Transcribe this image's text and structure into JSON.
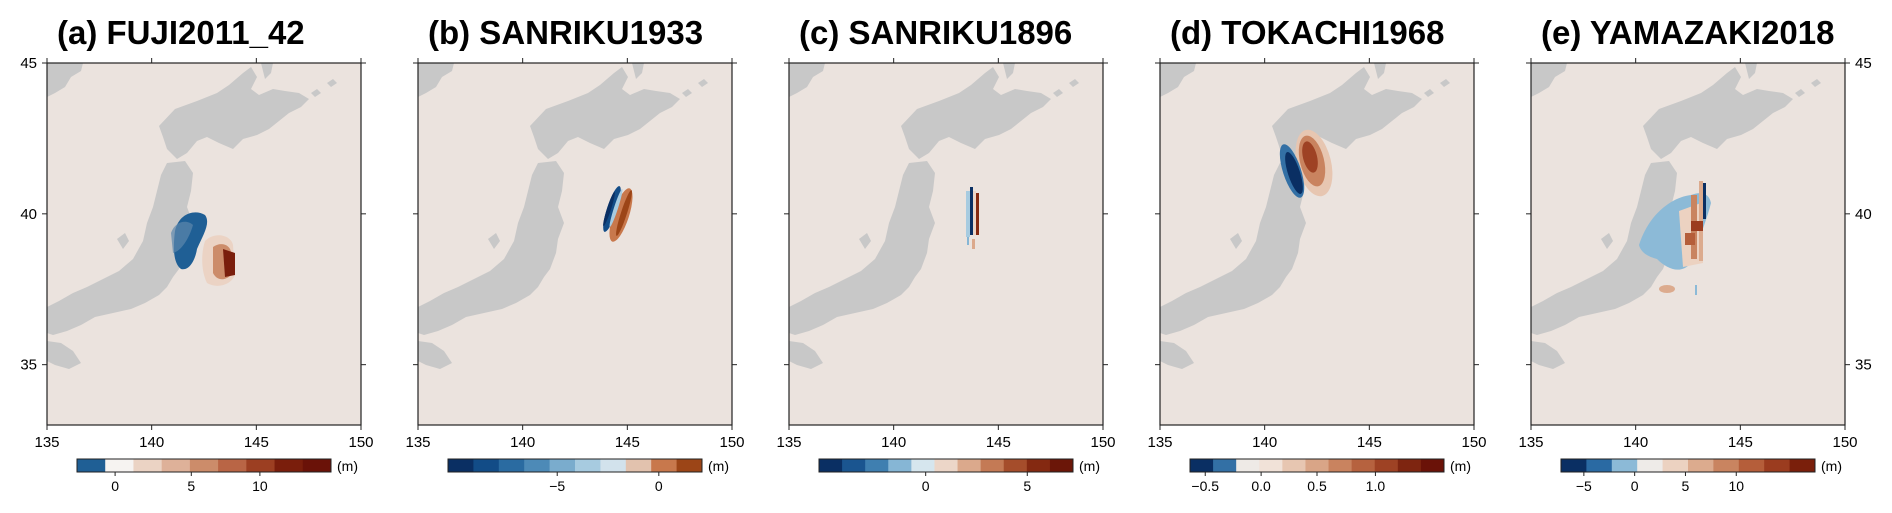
{
  "figure": {
    "unit": "(m)",
    "colors": {
      "sea": "#ebe3de",
      "land": "#c8c8c8",
      "frame": "#222222"
    },
    "map_extent": {
      "lon": [
        135,
        150
      ],
      "lat": [
        33,
        45
      ]
    },
    "x_ticks": [
      "135",
      "140",
      "145",
      "150"
    ],
    "y_ticks": [
      "45",
      "40",
      "35"
    ],
    "panels": [
      {
        "title": "(a)  FUJI2011_42",
        "colorbar": {
          "colors": [
            "#1f5f95",
            "#f6f3f1",
            "#ebd3c4",
            "#deb199",
            "#cc8c6a",
            "#b96545",
            "#9c3f22",
            "#7a1e0c",
            "#6a1208"
          ],
          "ticks": [
            "0",
            "5",
            "10"
          ]
        }
      },
      {
        "title": "(b)  SANRIKU1933",
        "colorbar": {
          "colors": [
            "#0a2f63",
            "#124c87",
            "#2a6ba1",
            "#4d8ab7",
            "#7aaccd",
            "#a7cbe0",
            "#d2e2ec",
            "#e2c2ae",
            "#c8784c",
            "#9c4517"
          ],
          "ticks": [
            "−5",
            "0"
          ]
        }
      },
      {
        "title": "(c)  SANRIKU1896",
        "colorbar": {
          "colors": [
            "#0a2f63",
            "#1a5590",
            "#3f7fb0",
            "#86b6d5",
            "#d6e6ee",
            "#ecd6c8",
            "#dba98c",
            "#c47a55",
            "#a54d2b",
            "#842911",
            "#6b1608"
          ],
          "ticks": [
            "0",
            "5"
          ]
        }
      },
      {
        "title": "(d)  TOKACHI1968",
        "colorbar": {
          "colors": [
            "#0a2f63",
            "#3370a5",
            "#eeeae6",
            "#f1e2d8",
            "#e7c6b1",
            "#d9a587",
            "#c9835f",
            "#b6623f",
            "#9e4224",
            "#7e2510",
            "#6a1208"
          ],
          "ticks": [
            "−0.5",
            "0.0",
            "0.5",
            "1.0"
          ]
        }
      },
      {
        "title": "(e)  YAMAZAKI2018",
        "colorbar": {
          "colors": [
            "#0a2f63",
            "#2a6aa3",
            "#8cbad7",
            "#eeebe8",
            "#ecd2c1",
            "#dcab8e",
            "#c98460",
            "#b55e3a",
            "#9b3c1f",
            "#7a1f0b"
          ],
          "ticks": [
            "−5",
            "0",
            "5",
            "10"
          ]
        }
      }
    ]
  }
}
